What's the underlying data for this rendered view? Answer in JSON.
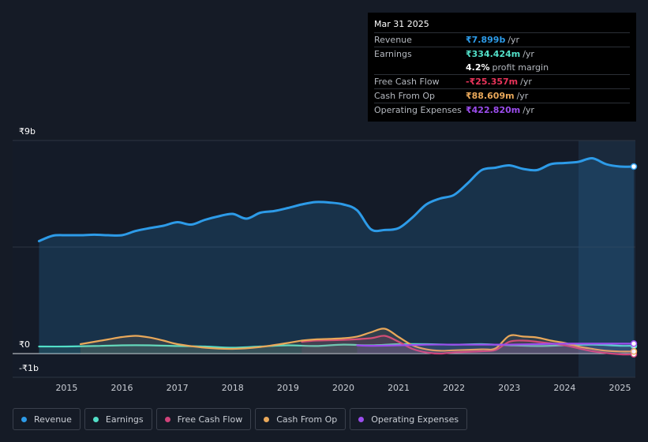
{
  "tooltip": {
    "date": "Mar 31 2025",
    "rows": [
      {
        "label": "Revenue",
        "value": "₹7.899b",
        "unit": "/yr",
        "color": "#2d9be8"
      },
      {
        "label": "Earnings",
        "value": "₹334.424m",
        "unit": "/yr",
        "color": "#52dfc8"
      },
      {
        "label": "",
        "value": "4.2%",
        "unit": "profit margin",
        "color": "#ffffff"
      },
      {
        "label": "Free Cash Flow",
        "value": "-₹25.357m",
        "unit": "/yr",
        "color": "#e8345a"
      },
      {
        "label": "Cash From Op",
        "value": "₹88.609m",
        "unit": "/yr",
        "color": "#e9a85a"
      },
      {
        "label": "Operating Expenses",
        "value": "₹422.820m",
        "unit": "/yr",
        "color": "#9b4ded"
      }
    ]
  },
  "legend": [
    {
      "label": "Revenue",
      "color": "#2d9be8"
    },
    {
      "label": "Earnings",
      "color": "#52dfc8"
    },
    {
      "label": "Free Cash Flow",
      "color": "#d0427a"
    },
    {
      "label": "Cash From Op",
      "color": "#e9a85a"
    },
    {
      "label": "Operating Expenses",
      "color": "#9b4ded"
    }
  ],
  "chart_data": {
    "type": "area",
    "ylim": [
      -1,
      9
    ],
    "y_tick_labels": [
      "₹9b",
      "₹0",
      "-₹1b"
    ],
    "y_tick_values": [
      9,
      0,
      -1
    ],
    "x_ticks": [
      2015,
      2016,
      2017,
      2018,
      2019,
      2020,
      2021,
      2022,
      2023,
      2024,
      2025
    ],
    "x_range": [
      2014.48,
      2025.25
    ],
    "forecast_start": 2024.25,
    "grid": true,
    "series": [
      {
        "name": "Revenue",
        "color": "#2d9be8",
        "fill": true,
        "x": [
          2014.5,
          2014.75,
          2015.0,
          2015.25,
          2015.5,
          2015.75,
          2016.0,
          2016.25,
          2016.5,
          2016.75,
          2017.0,
          2017.25,
          2017.5,
          2017.75,
          2018.0,
          2018.25,
          2018.5,
          2018.75,
          2019.0,
          2019.25,
          2019.5,
          2019.75,
          2020.0,
          2020.25,
          2020.5,
          2020.75,
          2021.0,
          2021.25,
          2021.5,
          2021.75,
          2022.0,
          2022.25,
          2022.5,
          2022.75,
          2023.0,
          2023.25,
          2023.5,
          2023.75,
          2024.0,
          2024.25,
          2024.5,
          2024.75,
          2025.0,
          2025.25
        ],
        "values": [
          4.75,
          4.98,
          5.0,
          5.0,
          5.02,
          5.0,
          5.0,
          5.18,
          5.3,
          5.4,
          5.55,
          5.45,
          5.65,
          5.8,
          5.9,
          5.7,
          5.95,
          6.02,
          6.15,
          6.3,
          6.4,
          6.38,
          6.3,
          6.05,
          5.25,
          5.22,
          5.3,
          5.75,
          6.3,
          6.55,
          6.7,
          7.2,
          7.75,
          7.85,
          7.95,
          7.8,
          7.75,
          8.0,
          8.05,
          8.1,
          8.25,
          8.0,
          7.9,
          7.9
        ]
      },
      {
        "name": "Earnings",
        "color": "#52dfc8",
        "fill": true,
        "x": [
          2014.5,
          2015.0,
          2015.5,
          2016.0,
          2016.5,
          2017.0,
          2017.5,
          2018.0,
          2018.5,
          2019.0,
          2019.5,
          2020.0,
          2020.5,
          2021.0,
          2021.5,
          2022.0,
          2022.5,
          2023.0,
          2023.5,
          2024.0,
          2024.5,
          2025.0,
          2025.25
        ],
        "values": [
          0.3,
          0.3,
          0.32,
          0.35,
          0.35,
          0.32,
          0.3,
          0.25,
          0.3,
          0.35,
          0.32,
          0.38,
          0.35,
          0.4,
          0.4,
          0.38,
          0.4,
          0.35,
          0.32,
          0.35,
          0.38,
          0.33,
          0.33
        ]
      },
      {
        "name": "Free Cash Flow",
        "color": "#d0427a",
        "fill": true,
        "x": [
          2019.25,
          2019.5,
          2020.0,
          2020.5,
          2020.75,
          2021.0,
          2021.25,
          2021.5,
          2021.75,
          2022.0,
          2022.5,
          2022.75,
          2023.0,
          2023.25,
          2023.5,
          2024.0,
          2024.5,
          2025.0,
          2025.25
        ],
        "values": [
          0.5,
          0.55,
          0.58,
          0.65,
          0.75,
          0.5,
          0.2,
          0.05,
          0.0,
          0.05,
          0.1,
          0.15,
          0.5,
          0.55,
          0.5,
          0.35,
          0.1,
          -0.03,
          -0.03
        ]
      },
      {
        "name": "Cash From Op",
        "color": "#e9a85a",
        "fill": true,
        "x": [
          2015.25,
          2015.5,
          2015.75,
          2016.0,
          2016.25,
          2016.5,
          2016.75,
          2017.0,
          2017.5,
          2018.0,
          2018.5,
          2019.0,
          2019.25,
          2019.5,
          2019.75,
          2020.0,
          2020.25,
          2020.5,
          2020.75,
          2021.0,
          2021.25,
          2021.5,
          2021.75,
          2022.0,
          2022.5,
          2022.75,
          2023.0,
          2023.25,
          2023.5,
          2023.75,
          2024.0,
          2024.25,
          2024.5,
          2024.75,
          2025.0,
          2025.25
        ],
        "values": [
          0.4,
          0.5,
          0.6,
          0.7,
          0.75,
          0.68,
          0.55,
          0.4,
          0.25,
          0.2,
          0.28,
          0.45,
          0.55,
          0.6,
          0.62,
          0.65,
          0.72,
          0.9,
          1.05,
          0.7,
          0.35,
          0.18,
          0.12,
          0.14,
          0.18,
          0.22,
          0.75,
          0.72,
          0.68,
          0.55,
          0.45,
          0.3,
          0.2,
          0.12,
          0.09,
          0.09
        ]
      },
      {
        "name": "Operating Expenses",
        "color": "#9b4ded",
        "fill": true,
        "x": [
          2020.25,
          2020.5,
          2021.0,
          2021.5,
          2022.0,
          2022.5,
          2023.0,
          2023.5,
          2024.0,
          2024.5,
          2025.0,
          2025.25
        ],
        "values": [
          0.35,
          0.33,
          0.35,
          0.38,
          0.38,
          0.38,
          0.38,
          0.4,
          0.42,
          0.42,
          0.42,
          0.42
        ]
      }
    ]
  }
}
